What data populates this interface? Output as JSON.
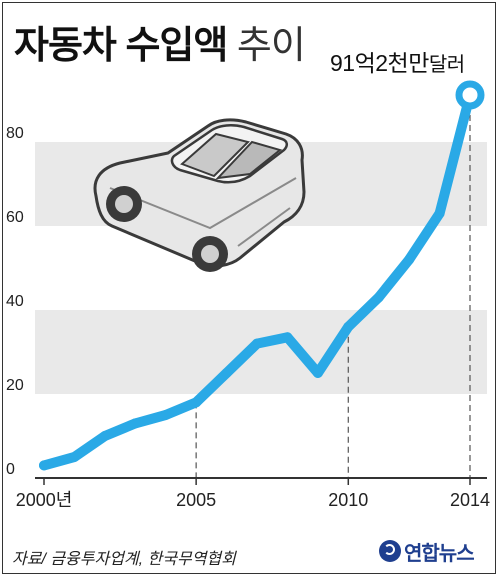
{
  "title": {
    "main": "자동차 수입액",
    "suffix": "추이"
  },
  "callout": {
    "value": "91억2천만",
    "unit": "달러"
  },
  "source": "자료/ 금융투자업계, 한국무역협회",
  "logo": {
    "text": "연합뉴스"
  },
  "colors": {
    "line": "#2aa9e6",
    "band": "#e9e9e9",
    "axis": "#333333",
    "text": "#222222"
  },
  "chart_data": {
    "type": "line",
    "title": "자동차 수입액 추이",
    "xlabel": "",
    "ylabel": "",
    "xlim": [
      2000,
      2014
    ],
    "ylim": [
      0,
      92
    ],
    "yticks": [
      0,
      20,
      40,
      60,
      80
    ],
    "xticks": [
      {
        "value": 2000,
        "label": "2000년"
      },
      {
        "value": 2005,
        "label": "2005"
      },
      {
        "value": 2010,
        "label": "2010"
      },
      {
        "value": 2014,
        "label": "2014"
      }
    ],
    "grid_bands": [
      [
        20,
        40
      ],
      [
        60,
        80
      ]
    ],
    "series": [
      {
        "x": [
          2000,
          2001,
          2002,
          2003,
          2004,
          2005,
          2006,
          2007,
          2008,
          2009,
          2010,
          2011,
          2012,
          2013,
          2014
        ],
        "values": [
          3,
          5,
          10,
          13,
          15,
          18,
          25,
          32,
          33.5,
          25,
          36,
          43,
          52,
          63,
          91.2
        ]
      }
    ],
    "annotation": {
      "x": 2014,
      "y": 91.2,
      "text": "91억2천만달러"
    }
  }
}
